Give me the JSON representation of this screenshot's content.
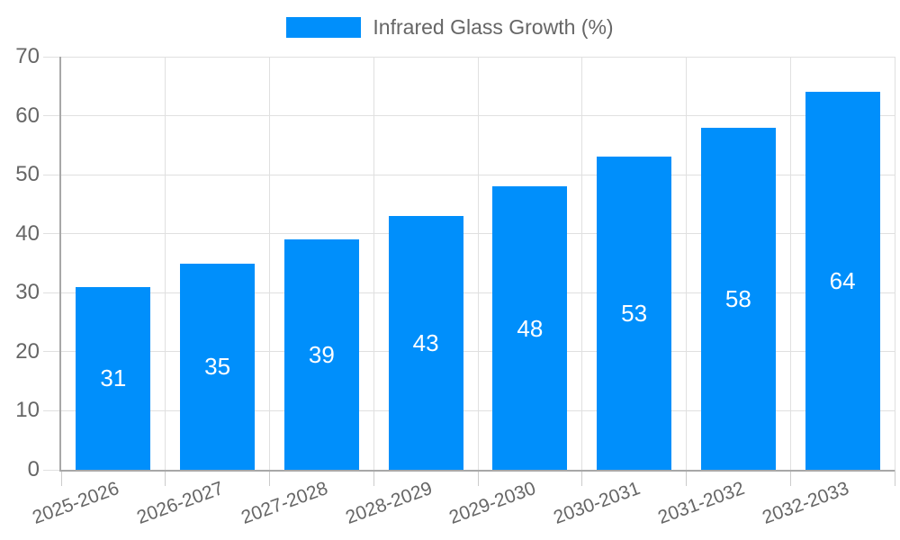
{
  "legend": {
    "label": "Infrared Glass Growth (%)",
    "swatch_color": "#008FFB"
  },
  "chart_data": {
    "type": "bar",
    "title": "",
    "xlabel": "",
    "ylabel": "",
    "series_name": "Infrared Glass Growth (%)",
    "categories": [
      "2025-2026",
      "2026-2027",
      "2027-2028",
      "2028-2029",
      "2029-2030",
      "2030-2031",
      "2031-2032",
      "2032-2033"
    ],
    "values": [
      31,
      35,
      39,
      43,
      48,
      53,
      58,
      64
    ],
    "ylim": [
      0,
      70
    ],
    "yticks": [
      0,
      10,
      20,
      30,
      40,
      50,
      60,
      70
    ],
    "grid": true,
    "legend_position": "top",
    "x_label_rotation_deg": -20,
    "bar_color": "#008FFB",
    "bar_value_label_color": "#ffffff",
    "axis_text_color": "#666666",
    "gridline_color": "#e0e0e0",
    "axis_line_color": "#a8a8a8"
  }
}
